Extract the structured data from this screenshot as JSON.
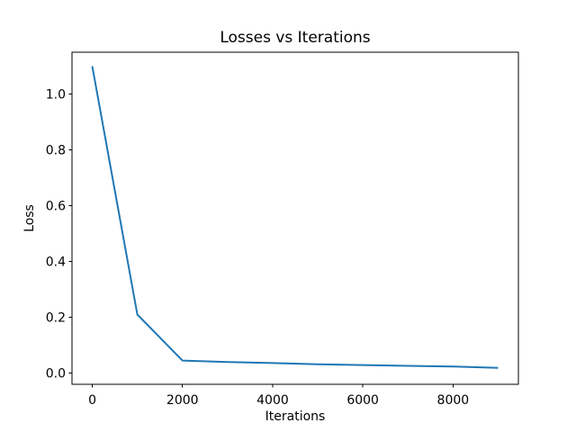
{
  "figure": {
    "background_color": "#ffffff",
    "text_color": "#000000"
  },
  "chart_data": {
    "type": "line",
    "title": "Losses vs Iterations",
    "xlabel": "Iterations",
    "ylabel": "Loss",
    "x": [
      0,
      1000,
      2000,
      3000,
      4000,
      5000,
      6000,
      7000,
      8000,
      9000
    ],
    "series": [
      {
        "name": "loss",
        "color": "#1f77b4",
        "values": [
          1.1,
          0.21,
          0.045,
          0.04,
          0.036,
          0.032,
          0.029,
          0.026,
          0.024,
          0.019
        ]
      }
    ],
    "xlim": [
      -450,
      9450
    ],
    "ylim": [
      -0.04,
      1.15
    ],
    "xticks": [
      0,
      2000,
      4000,
      6000,
      8000
    ],
    "xtick_labels": [
      "0",
      "2000",
      "4000",
      "6000",
      "8000"
    ],
    "yticks": [
      0.0,
      0.2,
      0.4,
      0.6,
      0.8,
      1.0
    ],
    "ytick_labels": [
      "0.0",
      "0.2",
      "0.4",
      "0.6",
      "0.8",
      "1.0"
    ],
    "grid": false,
    "legend_position": "none"
  }
}
